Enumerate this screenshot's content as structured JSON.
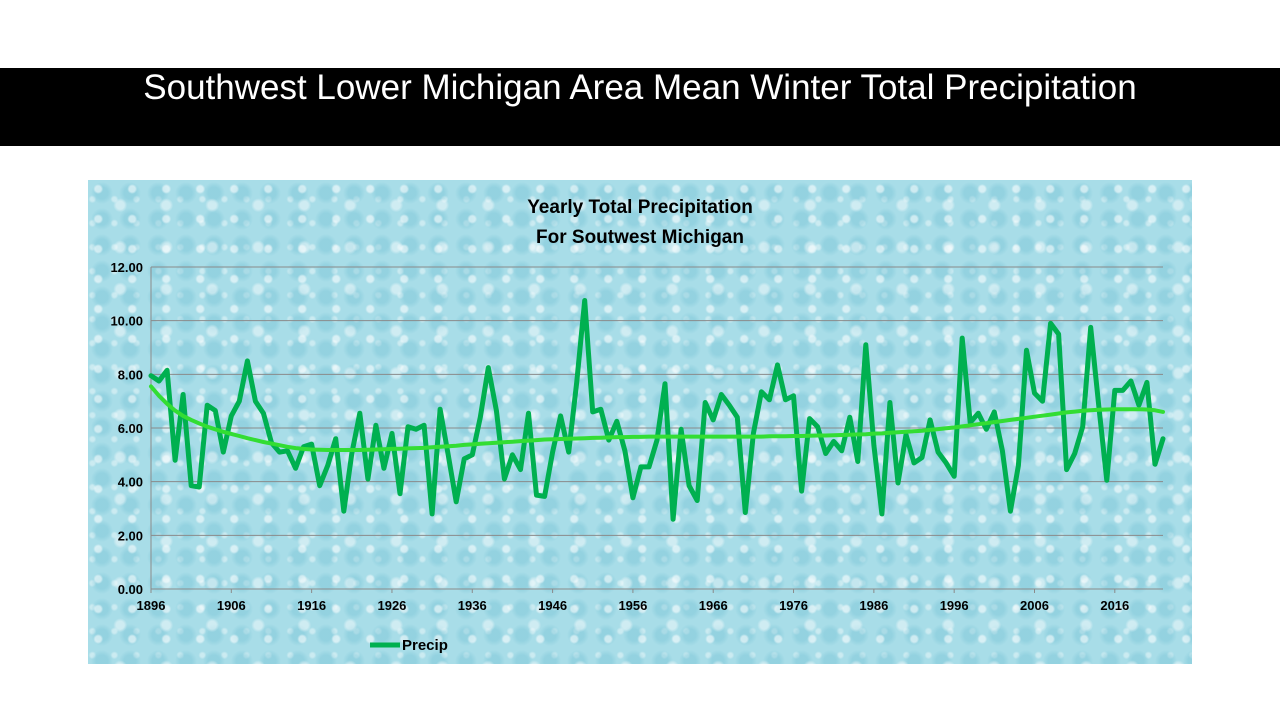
{
  "slide": {
    "title": "Southwest Lower Michigan Area Mean Winter Total Precipitation"
  },
  "chart_data": {
    "type": "line",
    "title": "Yearly Total Precipitation",
    "subtitle": "For Soutwest Michigan",
    "xlabel": "",
    "ylabel": "",
    "xlim": [
      1896,
      2022
    ],
    "ylim": [
      0,
      12
    ],
    "x_ticks": [
      1896,
      1906,
      1916,
      1926,
      1936,
      1946,
      1956,
      1966,
      1976,
      1986,
      1996,
      2006,
      2016
    ],
    "y_ticks": [
      "0.00",
      "2.00",
      "4.00",
      "6.00",
      "8.00",
      "10.00",
      "12.00"
    ],
    "grid": "horizontal",
    "legend_position": "bottom-left",
    "x": [
      1896,
      1897,
      1898,
      1899,
      1900,
      1901,
      1902,
      1903,
      1904,
      1905,
      1906,
      1907,
      1908,
      1909,
      1910,
      1911,
      1912,
      1913,
      1914,
      1915,
      1916,
      1917,
      1918,
      1919,
      1920,
      1921,
      1922,
      1923,
      1924,
      1925,
      1926,
      1927,
      1928,
      1929,
      1930,
      1931,
      1932,
      1933,
      1934,
      1935,
      1936,
      1937,
      1938,
      1939,
      1940,
      1941,
      1942,
      1943,
      1944,
      1945,
      1946,
      1947,
      1948,
      1949,
      1950,
      1951,
      1952,
      1953,
      1954,
      1955,
      1956,
      1957,
      1958,
      1959,
      1960,
      1961,
      1962,
      1963,
      1964,
      1965,
      1966,
      1967,
      1968,
      1969,
      1970,
      1971,
      1972,
      1973,
      1974,
      1975,
      1976,
      1977,
      1978,
      1979,
      1980,
      1981,
      1982,
      1983,
      1984,
      1985,
      1986,
      1987,
      1988,
      1989,
      1990,
      1991,
      1992,
      1993,
      1994,
      1995,
      1996,
      1997,
      1998,
      1999,
      2000,
      2001,
      2002,
      2003,
      2004,
      2005,
      2006,
      2007,
      2008,
      2009,
      2010,
      2011,
      2012,
      2013,
      2014,
      2015,
      2016,
      2017,
      2018,
      2019,
      2020,
      2021,
      2022
    ],
    "series": [
      {
        "name": "Precip",
        "color": "#00b050",
        "values": [
          7.95,
          7.75,
          8.15,
          4.8,
          7.25,
          3.85,
          3.8,
          6.85,
          6.65,
          5.1,
          6.45,
          7.0,
          8.5,
          7.0,
          6.55,
          5.45,
          5.1,
          5.15,
          4.5,
          5.3,
          5.4,
          3.85,
          4.6,
          5.6,
          2.9,
          5.05,
          6.55,
          4.1,
          6.1,
          4.5,
          5.8,
          3.55,
          6.05,
          5.95,
          6.1,
          2.8,
          6.7,
          5.0,
          3.25,
          4.85,
          5.0,
          6.4,
          8.25,
          6.65,
          4.1,
          5.0,
          4.45,
          6.55,
          3.5,
          3.45,
          5.1,
          6.45,
          5.1,
          7.7,
          10.75,
          6.6,
          6.7,
          5.55,
          6.25,
          5.15,
          3.4,
          4.55,
          4.55,
          5.55,
          7.65,
          2.6,
          5.95,
          3.85,
          3.3,
          6.95,
          6.3,
          7.25,
          6.85,
          6.4,
          2.85,
          5.8,
          7.35,
          7.05,
          8.35,
          7.05,
          7.2,
          3.65,
          6.35,
          6.05,
          5.05,
          5.5,
          5.15,
          6.4,
          4.75,
          9.1,
          5.35,
          2.8,
          6.95,
          3.95,
          5.75,
          4.7,
          4.9,
          6.3,
          5.1,
          4.7,
          4.2,
          9.35,
          6.2,
          6.55,
          5.95,
          6.6,
          5.15,
          2.9,
          4.6,
          8.9,
          7.3,
          7.0,
          9.9,
          9.5,
          4.45,
          5.05,
          6.05,
          9.75,
          6.85,
          4.05,
          7.4,
          7.4,
          7.75,
          6.85,
          7.7,
          4.65,
          5.6
        ]
      },
      {
        "name": "",
        "color": "#33dd33",
        "role": "smoothed trend",
        "values": [
          7.55,
          7.2,
          6.9,
          6.65,
          6.45,
          6.3,
          6.17,
          6.05,
          5.95,
          5.86,
          5.78,
          5.7,
          5.62,
          5.55,
          5.48,
          5.42,
          5.36,
          5.3,
          5.25,
          5.22,
          5.2,
          5.19,
          5.18,
          5.18,
          5.18,
          5.18,
          5.18,
          5.19,
          5.2,
          5.21,
          5.22,
          5.23,
          5.24,
          5.25,
          5.26,
          5.28,
          5.3,
          5.32,
          5.34,
          5.37,
          5.39,
          5.41,
          5.43,
          5.45,
          5.47,
          5.49,
          5.51,
          5.53,
          5.55,
          5.57,
          5.58,
          5.59,
          5.6,
          5.61,
          5.62,
          5.63,
          5.64,
          5.65,
          5.66,
          5.66,
          5.67,
          5.67,
          5.68,
          5.68,
          5.68,
          5.68,
          5.68,
          5.68,
          5.68,
          5.68,
          5.68,
          5.68,
          5.68,
          5.68,
          5.68,
          5.68,
          5.68,
          5.69,
          5.69,
          5.69,
          5.7,
          5.7,
          5.71,
          5.72,
          5.72,
          5.73,
          5.74,
          5.75,
          5.76,
          5.77,
          5.79,
          5.8,
          5.82,
          5.84,
          5.86,
          5.88,
          5.9,
          5.93,
          5.96,
          5.99,
          6.02,
          6.06,
          6.1,
          6.14,
          6.18,
          6.22,
          6.26,
          6.3,
          6.34,
          6.38,
          6.42,
          6.46,
          6.5,
          6.54,
          6.58,
          6.61,
          6.64,
          6.66,
          6.68,
          6.69,
          6.7,
          6.7,
          6.7,
          6.7,
          6.69,
          6.66,
          6.6
        ]
      }
    ]
  }
}
